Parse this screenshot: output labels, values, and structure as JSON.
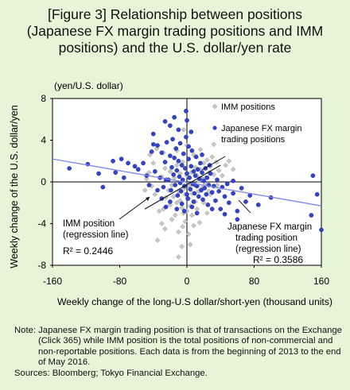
{
  "title": {
    "line1": "[Figure 3] Relationship between positions",
    "line2": "(Japanese FX margin trading positions and IMM",
    "line3": "positions) and the U.S. dollar/yen rate"
  },
  "colors": {
    "background": "#e6f5d8",
    "plot_bg": "#ffffff",
    "imm": "#c8c8c8",
    "fx": "#3344cc",
    "fx_line": "#7b86e6",
    "imm_line": "#111111"
  },
  "note": {
    "line1": "Note: Japanese FX margin trading position is that of transactions on the Exchange (Click 365) while IMM position is the total positions of non-commercial and non-reportable positions. Each data is from the beginning of 2013 to the end of May 2016.",
    "line2": "Sources: Bloomberg; Tokyo Financial Exchange."
  },
  "chart_data": {
    "type": "scatter",
    "title": "[Figure 3] Relationship between positions (Japanese FX margin trading positions and IMM positions) and the U.S. dollar/yen rate",
    "xlabel": "Weekly change of the long-U.S dollar/short-yen (thousand units)",
    "ylabel": "Weekly change of the U.S. dollar/yen",
    "yunit": "(yen/U.S. dollar)",
    "xlim": [
      -160,
      160
    ],
    "ylim": [
      -8,
      8
    ],
    "xticks": [
      "-160",
      "-80",
      "0",
      "80",
      "160"
    ],
    "yticks": [
      "8",
      "4",
      "0",
      "-4",
      "-8"
    ],
    "legend_position": "top-right",
    "grid": false,
    "series": [
      {
        "name": "IMM positions",
        "marker": "diamond",
        "points": [
          [
            -35,
            -5.6
          ],
          [
            -30,
            -4.0
          ],
          [
            -28,
            -2.6
          ],
          [
            -25,
            -1.5
          ],
          [
            -22,
            -0.8
          ],
          [
            -20,
            -2.2
          ],
          [
            -18,
            -0.3
          ],
          [
            -16,
            -1.4
          ],
          [
            -14,
            -3.2
          ],
          [
            -12,
            -2.0
          ],
          [
            -10,
            -0.9
          ],
          [
            -8,
            -1.8
          ],
          [
            -6,
            -2.5
          ],
          [
            -5,
            -4.3
          ],
          [
            -4,
            -3.0
          ],
          [
            -3,
            -0.6
          ],
          [
            -2,
            -1.2
          ],
          [
            0,
            -2.8
          ],
          [
            2,
            -1.6
          ],
          [
            3,
            -0.4
          ],
          [
            4,
            -2.3
          ],
          [
            6,
            -1.1
          ],
          [
            8,
            -0.2
          ],
          [
            10,
            -1.9
          ],
          [
            12,
            0.6
          ],
          [
            14,
            -0.9
          ],
          [
            16,
            1.2
          ],
          [
            18,
            0.3
          ],
          [
            20,
            1.8
          ],
          [
            22,
            0.4
          ],
          [
            24,
            2.1
          ],
          [
            26,
            0.9
          ],
          [
            28,
            1.5
          ],
          [
            30,
            2.4
          ],
          [
            32,
            0.7
          ],
          [
            35,
            1.9
          ],
          [
            38,
            1.1
          ],
          [
            -30,
            0.5
          ],
          [
            -26,
            1.3
          ],
          [
            -24,
            0.2
          ],
          [
            -20,
            1.0
          ],
          [
            -15,
            0.4
          ],
          [
            -12,
            1.6
          ],
          [
            -8,
            0.8
          ],
          [
            -5,
            1.9
          ],
          [
            0,
            0.6
          ],
          [
            5,
            0.9
          ],
          [
            10,
            1.4
          ],
          [
            14,
            0.1
          ],
          [
            18,
            -0.6
          ],
          [
            22,
            -0.2
          ],
          [
            26,
            -0.9
          ],
          [
            -38,
            -1.2
          ],
          [
            -42,
            -0.4
          ],
          [
            -45,
            0.9
          ],
          [
            -40,
            1.8
          ],
          [
            -33,
            -2.8
          ],
          [
            -10,
            -4.8
          ],
          [
            -6,
            -6.2
          ],
          [
            -2,
            -3.8
          ],
          [
            6,
            -3.2
          ],
          [
            12,
            -2.6
          ],
          [
            20,
            -2.0
          ],
          [
            28,
            -1.2
          ],
          [
            36,
            -0.3
          ],
          [
            42,
            0.6
          ],
          [
            46,
            1.6
          ],
          [
            -18,
            -3.6
          ],
          [
            -26,
            -4.5
          ],
          [
            2,
            -5.0
          ],
          [
            8,
            -4.2
          ],
          [
            15,
            -3.9
          ],
          [
            24,
            -3.0
          ],
          [
            -50,
            -0.8
          ],
          [
            -48,
            0.3
          ],
          [
            -44,
            2.6
          ],
          [
            -36,
            3.2
          ],
          [
            -28,
            2.8
          ],
          [
            -12,
            3.0
          ],
          [
            0,
            3.5
          ],
          [
            8,
            2.6
          ],
          [
            16,
            3.1
          ],
          [
            32,
            3.6
          ],
          [
            -4,
            5.0
          ],
          [
            -10,
            -7.2
          ],
          [
            4,
            -6.0
          ],
          [
            50,
            2.0
          ],
          [
            55,
            1.2
          ]
        ]
      },
      {
        "name": "Japanese FX margin trading positions",
        "marker": "circle",
        "points": [
          [
            -140,
            1.3
          ],
          [
            -118,
            1.7
          ],
          [
            -105,
            0.8
          ],
          [
            -100,
            -0.5
          ],
          [
            -88,
            2.0
          ],
          [
            -78,
            2.2
          ],
          [
            -70,
            1.8
          ],
          [
            -58,
            1.2
          ],
          [
            -48,
            0.6
          ],
          [
            -42,
            2.9
          ],
          [
            -40,
            4.6
          ],
          [
            -38,
            1.0
          ],
          [
            -35,
            3.5
          ],
          [
            -32,
            0.4
          ],
          [
            -30,
            2.8
          ],
          [
            -28,
            -0.5
          ],
          [
            -26,
            1.9
          ],
          [
            -24,
            3.8
          ],
          [
            -22,
            0.2
          ],
          [
            -20,
            2.5
          ],
          [
            -19,
            -0.8
          ],
          [
            -18,
            1.4
          ],
          [
            -17,
            4.1
          ],
          [
            -16,
            0.7
          ],
          [
            -15,
            2.3
          ],
          [
            -14,
            -0.3
          ],
          [
            -13,
            3.2
          ],
          [
            -12,
            1.1
          ],
          [
            -11,
            -1.3
          ],
          [
            -10,
            2.0
          ],
          [
            -9,
            0.5
          ],
          [
            -8,
            3.7
          ],
          [
            -7,
            -0.9
          ],
          [
            -6,
            1.6
          ],
          [
            -5,
            0.2
          ],
          [
            -4,
            2.7
          ],
          [
            -3,
            -0.4
          ],
          [
            -2,
            1.3
          ],
          [
            -1,
            4.3
          ],
          [
            0,
            0.8
          ],
          [
            1,
            -1.6
          ],
          [
            2,
            2.2
          ],
          [
            3,
            0.4
          ],
          [
            4,
            -0.7
          ],
          [
            5,
            1.5
          ],
          [
            6,
            3.0
          ],
          [
            7,
            -0.2
          ],
          [
            8,
            1.0
          ],
          [
            9,
            -1.1
          ],
          [
            10,
            0.6
          ],
          [
            11,
            2.4
          ],
          [
            12,
            -0.4
          ],
          [
            13,
            1.2
          ],
          [
            14,
            -1.4
          ],
          [
            15,
            0.3
          ],
          [
            16,
            1.8
          ],
          [
            17,
            -0.8
          ],
          [
            18,
            0.9
          ],
          [
            19,
            -1.7
          ],
          [
            20,
            0.1
          ],
          [
            21,
            -0.6
          ],
          [
            22,
            1.3
          ],
          [
            23,
            -1.2
          ],
          [
            24,
            0.4
          ],
          [
            25,
            -2.2
          ],
          [
            26,
            -0.3
          ],
          [
            28,
            0.8
          ],
          [
            30,
            -1.0
          ],
          [
            32,
            -0.4
          ],
          [
            34,
            -1.8
          ],
          [
            36,
            0.2
          ],
          [
            38,
            -0.9
          ],
          [
            40,
            -2.6
          ],
          [
            42,
            -0.5
          ],
          [
            45,
            -1.4
          ],
          [
            48,
            -0.2
          ],
          [
            50,
            -2.0
          ],
          [
            55,
            -1.1
          ],
          [
            60,
            -2.8
          ],
          [
            65,
            -0.6
          ],
          [
            70,
            -1.9
          ],
          [
            75,
            -1.3
          ],
          [
            85,
            -2.2
          ],
          [
            100,
            -1.5
          ],
          [
            155,
            -1.2
          ],
          [
            150,
            0.6
          ],
          [
            148,
            -3.2
          ],
          [
            160,
            -4.6
          ],
          [
            -30,
            -1.6
          ],
          [
            -25,
            -2.4
          ],
          [
            -20,
            -1.9
          ],
          [
            -12,
            -2.6
          ],
          [
            -6,
            -2.1
          ],
          [
            0,
            -1.2
          ],
          [
            6,
            -2.4
          ],
          [
            12,
            -3.0
          ],
          [
            -35,
            -0.8
          ],
          [
            -45,
            -0.3
          ],
          [
            -52,
            1.8
          ],
          [
            -10,
            5.0
          ],
          [
            5,
            4.8
          ],
          [
            -20,
            5.4
          ],
          [
            -15,
            6.2
          ],
          [
            0,
            5.9
          ],
          [
            -25,
            0.2
          ],
          [
            2,
            3.4
          ],
          [
            -8,
            -0.1
          ],
          [
            10,
            -0.3
          ],
          [
            18,
            2.6
          ],
          [
            27,
            1.6
          ],
          [
            -3,
            -2.8
          ],
          [
            -40,
            3.6
          ],
          [
            8,
            -1.9
          ],
          [
            55,
            0.1
          ],
          [
            -62,
            1.5
          ],
          [
            -75,
            0.4
          ],
          [
            -85,
            0.9
          ],
          [
            60,
            -3.6
          ],
          [
            30,
            -2.6
          ],
          [
            45,
            -3.1
          ],
          [
            -1,
            6.8
          ],
          [
            -26,
            5.8
          ]
        ]
      }
    ],
    "annotations": [
      {
        "text": "IMM position",
        "line2": "(regression line)",
        "stat": "R² = 0.2446"
      },
      {
        "text": "Japanese FX margin",
        "line2": "trading position",
        "line3": "(regression line)",
        "stat": "R² = 0.3586"
      }
    ],
    "regression_lines": [
      {
        "series": "IMM positions",
        "x": [
          -50,
          40
        ],
        "y": [
          -2.6,
          1.6
        ]
      },
      {
        "series": "Japanese FX margin trading positions",
        "x": [
          -160,
          160
        ],
        "y": [
          2.2,
          -2.3
        ]
      }
    ]
  }
}
